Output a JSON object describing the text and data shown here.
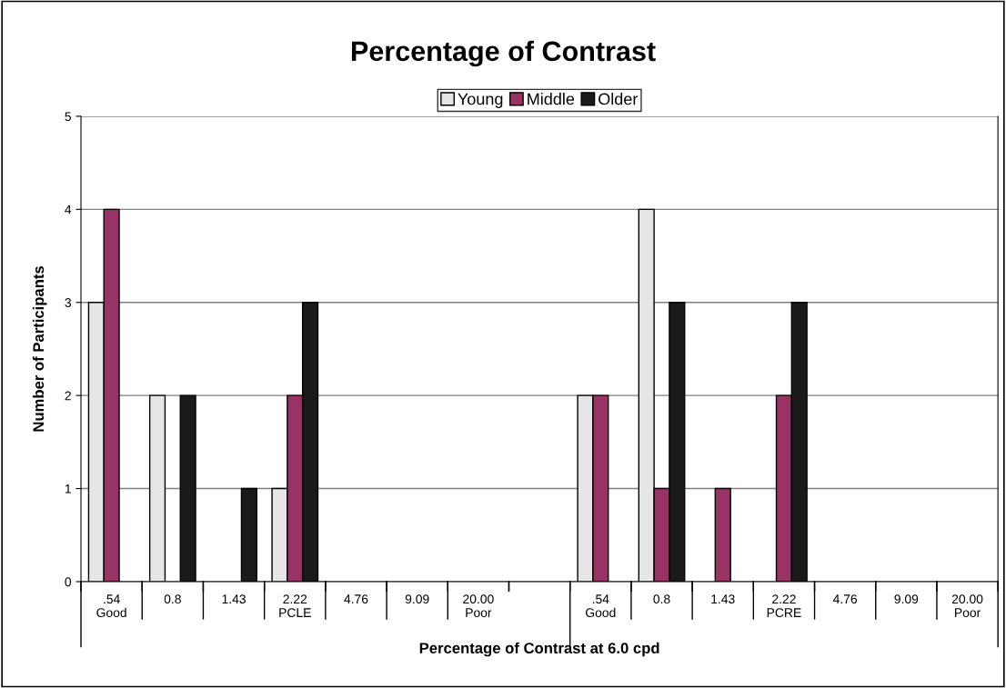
{
  "chart_data": {
    "type": "bar",
    "title": "Percentage of Contrast",
    "xlabel": "Percentage of Contrast at 6.0 cpd",
    "ylabel": "Number of Participants",
    "categories": [
      ".54\nGood",
      "0.8",
      "1.43",
      "2.22\nPCLE",
      "4.76",
      "9.09",
      "20.00\nPoor",
      null,
      ".54\nGood",
      "0.8",
      "1.43",
      "2.22\nPCRE",
      "4.76",
      "9.09",
      "20.00\nPoor"
    ],
    "series": [
      {
        "name": "Young",
        "color": "#e6e6e6",
        "values": [
          3,
          2,
          0,
          1,
          0,
          0,
          0,
          null,
          2,
          4,
          0,
          0,
          0,
          0,
          0
        ]
      },
      {
        "name": "Middle",
        "color": "#993366",
        "values": [
          4,
          0,
          0,
          2,
          0,
          0,
          0,
          null,
          2,
          1,
          1,
          2,
          0,
          0,
          0
        ]
      },
      {
        "name": "Older",
        "color": "#1a1a1a",
        "values": [
          0,
          2,
          1,
          3,
          0,
          0,
          0,
          null,
          0,
          3,
          0,
          3,
          0,
          0,
          0
        ]
      }
    ],
    "ylim": [
      0,
      5
    ],
    "yticks": [
      0,
      1,
      2,
      3,
      4,
      5
    ],
    "grid": "y",
    "legend": "top"
  }
}
